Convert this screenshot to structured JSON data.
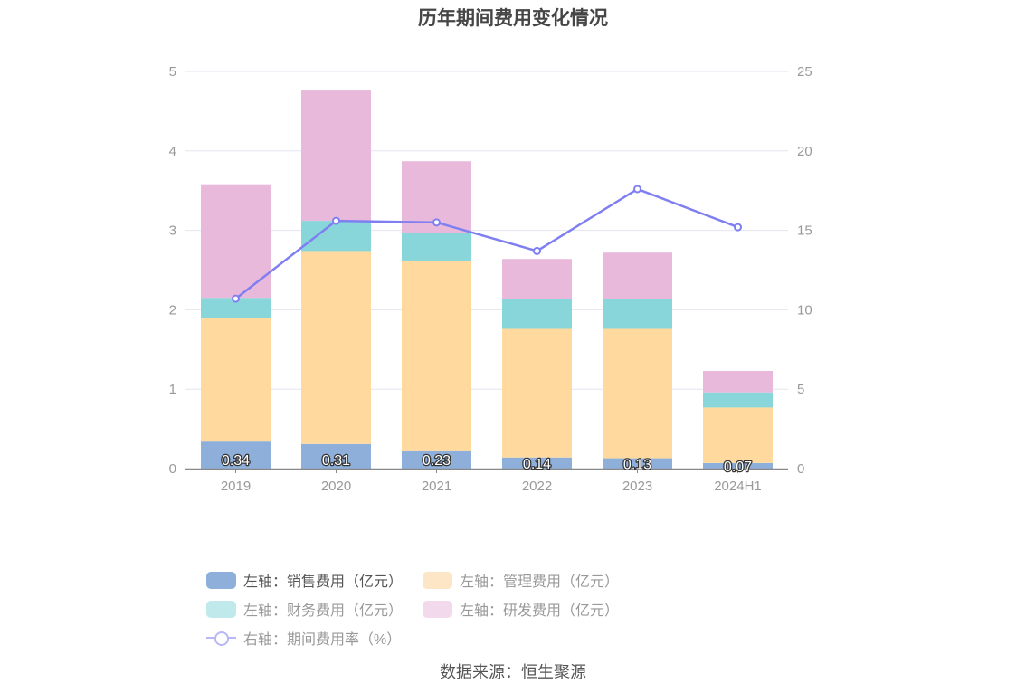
{
  "title": "历年期间费用变化情况",
  "source": "数据来源：恒生聚源",
  "chart_data": {
    "type": "bar",
    "stacked": true,
    "categories": [
      "2019",
      "2020",
      "2021",
      "2022",
      "2023",
      "2024H1"
    ],
    "y_left": {
      "min": 0,
      "max": 5,
      "ticks": [
        "0",
        "1",
        "2",
        "3",
        "4",
        "5"
      ]
    },
    "y_right": {
      "min": 0,
      "max": 25,
      "ticks": [
        "0",
        "5",
        "10",
        "15",
        "20",
        "25"
      ]
    },
    "grid": true,
    "legend_position": "bottom",
    "series": [
      {
        "name": "左轴：销售费用（亿元）",
        "axis": "left",
        "type": "bar",
        "color": "#8fafdb",
        "values": [
          0.34,
          0.31,
          0.23,
          0.14,
          0.13,
          0.07
        ],
        "labels": [
          "0.34",
          "0.31",
          "0.23",
          "0.14",
          "0.13",
          "0.07"
        ]
      },
      {
        "name": "左轴：管理费用（亿元）",
        "axis": "left",
        "type": "bar",
        "color": "#ffd99e",
        "values": [
          1.56,
          2.43,
          2.39,
          1.62,
          1.63,
          0.7
        ]
      },
      {
        "name": "左轴：财务费用（亿元）",
        "axis": "left",
        "type": "bar",
        "color": "#88d6da",
        "values": [
          0.25,
          0.38,
          0.35,
          0.38,
          0.38,
          0.19
        ]
      },
      {
        "name": "左轴：研发费用（亿元）",
        "axis": "left",
        "type": "bar",
        "color": "#e8b9db",
        "values": [
          1.43,
          1.64,
          0.9,
          0.5,
          0.58,
          0.27
        ]
      },
      {
        "name": "右轴：期间费用率（%）",
        "axis": "right",
        "type": "line",
        "color": "#7f7ff2",
        "values": [
          10.7,
          15.6,
          15.5,
          13.7,
          17.6,
          15.2
        ]
      }
    ]
  }
}
